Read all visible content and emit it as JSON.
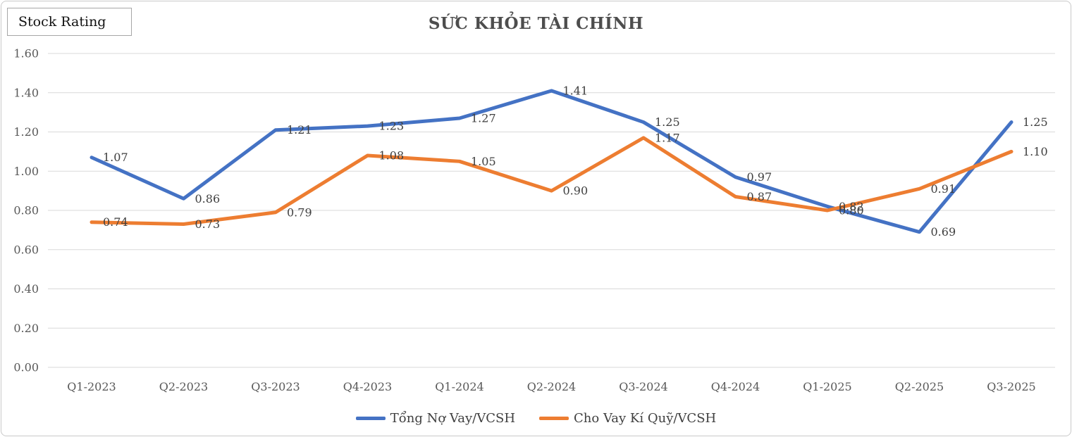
{
  "stock_rating_label": "Stock Rating",
  "chart_data": {
    "type": "line",
    "title": "SỨC KHỎE TÀI CHÍNH",
    "categories": [
      "Q1-2023",
      "Q2-2023",
      "Q3-2023",
      "Q4-2023",
      "Q1-2024",
      "Q2-2024",
      "Q3-2024",
      "Q4-2024",
      "Q1-2025",
      "Q2-2025",
      "Q3-2025"
    ],
    "series": [
      {
        "name": "Tổng Nợ Vay/VCSH",
        "color": "#4472C4",
        "values": [
          1.07,
          0.86,
          1.21,
          1.23,
          1.27,
          1.41,
          1.25,
          0.97,
          0.82,
          0.69,
          1.25
        ]
      },
      {
        "name": "Cho Vay Kí Quỹ/VCSH",
        "color": "#ED7D31",
        "values": [
          0.74,
          0.73,
          0.79,
          1.08,
          1.05,
          0.9,
          1.17,
          0.87,
          0.8,
          0.91,
          1.1
        ]
      }
    ],
    "ylim": [
      0,
      1.6
    ],
    "ytick_step": 0.2,
    "ytick_labels": [
      "0.00",
      "0.20",
      "0.40",
      "0.60",
      "0.80",
      "1.00",
      "1.20",
      "1.40",
      "1.60"
    ],
    "grid": true,
    "data_labels": true,
    "data_label_decimals": 2,
    "legend_position": "bottom"
  },
  "colors": {
    "grid": "#d9d9d9",
    "axis_text": "#595959",
    "data_label_text": "#404040",
    "title_text": "#4d4d4d",
    "frame_border": "#c9c9c9"
  }
}
